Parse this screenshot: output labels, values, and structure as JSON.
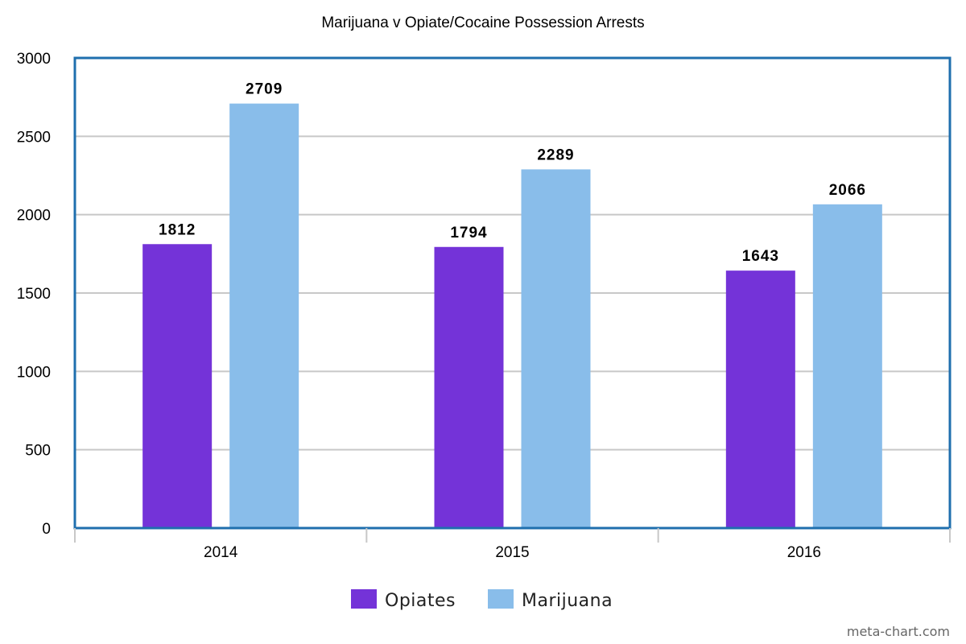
{
  "chart_data": {
    "type": "bar",
    "title": "Marijuana v Opiate/Cocaine Possession Arrests",
    "categories": [
      "2014",
      "2015",
      "2016"
    ],
    "series": [
      {
        "name": "Opiates",
        "color": "#7433d8",
        "values": [
          1812,
          1794,
          1643
        ]
      },
      {
        "name": "Marijuana",
        "color": "#89bdea",
        "values": [
          2709,
          2289,
          2066
        ]
      }
    ],
    "ylim": [
      0,
      3000
    ],
    "yticks": [
      0,
      500,
      1000,
      1500,
      2000,
      2500,
      3000
    ],
    "grid": true,
    "legend_position": "bottom-center",
    "data_labels": true
  },
  "credit": "meta-chart.com",
  "colors": {
    "frame": "#1f6fae",
    "grid": "#c8c8c8",
    "axis": "#c8c8c8"
  }
}
